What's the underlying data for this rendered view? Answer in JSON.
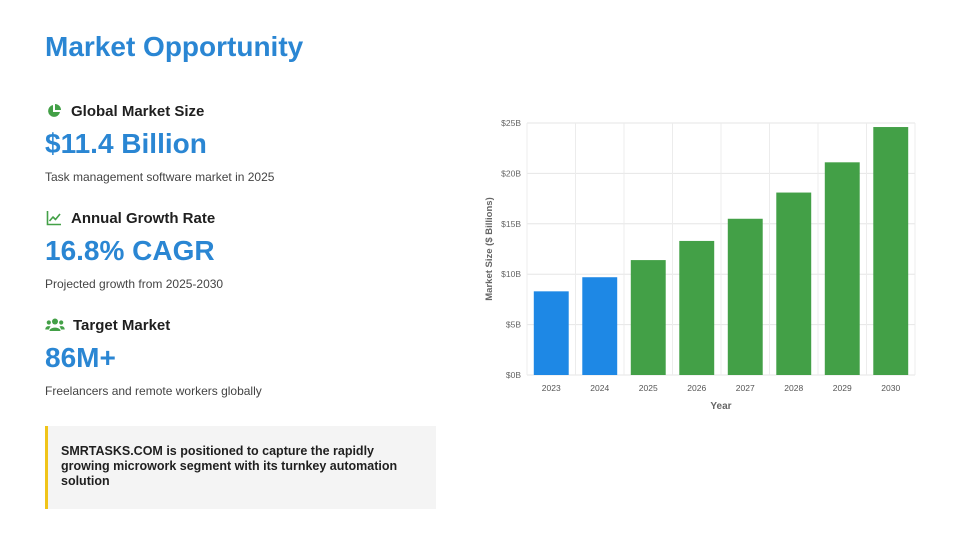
{
  "page": {
    "title": "Market Opportunity"
  },
  "stats": [
    {
      "heading": "Global Market Size",
      "value": "$11.4 Billion",
      "description": "Task management software market in 2025",
      "icon": "pie-chart-icon"
    },
    {
      "heading": "Annual Growth Rate",
      "value": "16.8% CAGR",
      "description": "Projected growth from 2025-2030",
      "icon": "line-chart-icon"
    },
    {
      "heading": "Target Market",
      "value": "86M+",
      "description": "Freelancers and remote workers globally",
      "icon": "users-icon"
    }
  ],
  "callout": {
    "text": "SMRTASKS.COM is positioned to capture the rapidly growing microwork segment with its turnkey automation solution"
  },
  "colors": {
    "accent": "#2a86d3",
    "icon_green": "#43a047",
    "callout_border": "#f0c419",
    "bar_blue": "#1e88e5",
    "bar_green": "#43a047"
  },
  "chart_data": {
    "type": "bar",
    "categories": [
      "2023",
      "2024",
      "2025",
      "2026",
      "2027",
      "2028",
      "2029",
      "2030"
    ],
    "values": [
      8.3,
      9.7,
      11.4,
      13.3,
      15.5,
      18.1,
      21.1,
      24.6
    ],
    "bar_colors": [
      "#1e88e5",
      "#1e88e5",
      "#43a047",
      "#43a047",
      "#43a047",
      "#43a047",
      "#43a047",
      "#43a047"
    ],
    "xlabel": "Year",
    "ylabel": "Market Size ($ Billions)",
    "ylim": [
      0,
      25
    ],
    "yticks": [
      0,
      5,
      10,
      15,
      20,
      25
    ],
    "ytick_labels": [
      "$0B",
      "$5B",
      "$10B",
      "$15B",
      "$20B",
      "$25B"
    ],
    "grid": true,
    "legend": false
  }
}
